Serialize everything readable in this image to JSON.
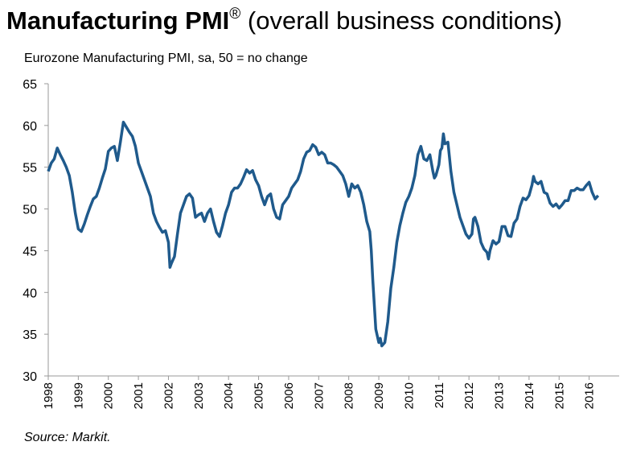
{
  "chart_data": {
    "type": "line",
    "title": "Manufacturing PMI",
    "title_mark": "®",
    "title_suffix": " (overall business conditions)",
    "subtitle": "Eurozone Manufacturing PMI, sa, 50 = no change",
    "source": "Source: Markit.",
    "x": [
      1998.0,
      1998.1,
      1998.2,
      1998.3,
      1998.4,
      1998.5,
      1998.6,
      1998.7,
      1998.8,
      1998.9,
      1999.0,
      1999.1,
      1999.2,
      1999.3,
      1999.4,
      1999.5,
      1999.6,
      1999.7,
      1999.8,
      1999.9,
      2000.0,
      2000.1,
      2000.2,
      2000.3,
      2000.4,
      2000.5,
      2000.6,
      2000.7,
      2000.8,
      2000.9,
      2001.0,
      2001.1,
      2001.2,
      2001.3,
      2001.4,
      2001.5,
      2001.6,
      2001.7,
      2001.8,
      2001.9,
      2002.0,
      2002.05,
      2002.1,
      2002.2,
      2002.3,
      2002.4,
      2002.5,
      2002.6,
      2002.7,
      2002.8,
      2002.9,
      2003.0,
      2003.1,
      2003.2,
      2003.3,
      2003.4,
      2003.5,
      2003.6,
      2003.7,
      2003.8,
      2003.9,
      2004.0,
      2004.1,
      2004.2,
      2004.3,
      2004.4,
      2004.5,
      2004.6,
      2004.7,
      2004.8,
      2004.9,
      2005.0,
      2005.1,
      2005.2,
      2005.3,
      2005.4,
      2005.5,
      2005.6,
      2005.7,
      2005.8,
      2005.9,
      2006.0,
      2006.1,
      2006.2,
      2006.3,
      2006.4,
      2006.5,
      2006.6,
      2006.7,
      2006.8,
      2006.9,
      2007.0,
      2007.1,
      2007.2,
      2007.3,
      2007.4,
      2007.5,
      2007.6,
      2007.7,
      2007.8,
      2007.9,
      2008.0,
      2008.1,
      2008.2,
      2008.3,
      2008.4,
      2008.5,
      2008.6,
      2008.7,
      2008.75,
      2008.8,
      2008.9,
      2009.0,
      2009.05,
      2009.1,
      2009.2,
      2009.3,
      2009.4,
      2009.5,
      2009.6,
      2009.7,
      2009.8,
      2009.9,
      2010.0,
      2010.1,
      2010.2,
      2010.3,
      2010.4,
      2010.5,
      2010.6,
      2010.7,
      2010.8,
      2010.85,
      2010.9,
      2011.0,
      2011.05,
      2011.1,
      2011.15,
      2011.2,
      2011.3,
      2011.4,
      2011.5,
      2011.6,
      2011.7,
      2011.8,
      2011.9,
      2012.0,
      2012.1,
      2012.15,
      2012.2,
      2012.3,
      2012.4,
      2012.5,
      2012.6,
      2012.65,
      2012.7,
      2012.8,
      2012.9,
      2013.0,
      2013.1,
      2013.2,
      2013.3,
      2013.4,
      2013.5,
      2013.6,
      2013.7,
      2013.8,
      2013.9,
      2014.0,
      2014.1,
      2014.15,
      2014.2,
      2014.3,
      2014.4,
      2014.5,
      2014.6,
      2014.7,
      2014.8,
      2014.9,
      2015.0,
      2015.1,
      2015.2,
      2015.3,
      2015.4,
      2015.5,
      2015.6,
      2015.7,
      2015.8,
      2015.9,
      2016.0,
      2016.1,
      2016.2,
      2016.3
    ],
    "series": [
      {
        "name": "Eurozone Manufacturing PMI",
        "color": "#1f5a8c",
        "values": [
          54.5,
          55.5,
          56.0,
          57.3,
          56.5,
          55.8,
          55.0,
          54.0,
          52.0,
          49.5,
          47.6,
          47.3,
          48.2,
          49.3,
          50.3,
          51.2,
          51.5,
          52.5,
          53.7,
          54.8,
          56.9,
          57.3,
          57.5,
          55.8,
          58.0,
          60.4,
          59.8,
          59.2,
          58.7,
          57.5,
          55.5,
          54.5,
          53.5,
          52.5,
          51.5,
          49.5,
          48.5,
          47.8,
          47.2,
          47.4,
          46.0,
          43.0,
          43.5,
          44.3,
          47.0,
          49.5,
          50.5,
          51.5,
          51.8,
          51.3,
          49.0,
          49.3,
          49.5,
          48.5,
          49.5,
          50.0,
          48.5,
          47.2,
          46.7,
          48.0,
          49.5,
          50.5,
          52.0,
          52.5,
          52.5,
          53.0,
          53.8,
          54.7,
          54.3,
          54.6,
          53.5,
          52.8,
          51.5,
          50.5,
          51.5,
          51.8,
          50.0,
          49.0,
          48.8,
          50.5,
          51.0,
          51.5,
          52.5,
          53.0,
          53.5,
          54.5,
          56.0,
          56.8,
          57.0,
          57.7,
          57.4,
          56.5,
          56.8,
          56.5,
          55.5,
          55.5,
          55.3,
          55.0,
          54.5,
          54.0,
          53.0,
          51.5,
          53.0,
          52.5,
          52.8,
          52.0,
          50.5,
          48.5,
          47.3,
          45.0,
          41.5,
          35.6,
          34.0,
          34.5,
          33.6,
          34.0,
          36.5,
          40.5,
          43.0,
          46.0,
          48.0,
          49.5,
          50.8,
          51.5,
          52.5,
          54.0,
          56.5,
          57.5,
          56.0,
          55.8,
          56.5,
          54.5,
          53.7,
          54.0,
          55.3,
          57.0,
          57.3,
          59.0,
          57.8,
          58.0,
          54.5,
          52.0,
          50.5,
          49.0,
          48.0,
          47.0,
          46.5,
          47.0,
          48.8,
          49.0,
          47.9,
          46.0,
          45.2,
          44.8,
          44.0,
          45.0,
          46.2,
          45.8,
          46.1,
          47.9,
          47.9,
          46.8,
          46.7,
          48.3,
          48.8,
          50.3,
          51.3,
          51.1,
          51.6,
          52.9,
          53.9,
          53.3,
          53.0,
          53.3,
          52.0,
          51.8,
          50.7,
          50.3,
          50.6,
          50.1,
          50.5,
          51.0,
          51.0,
          52.2,
          52.2,
          52.5,
          52.3,
          52.3,
          52.8,
          53.2,
          52.0,
          51.2,
          51.6
        ]
      }
    ],
    "xlim": [
      1998,
      2017
    ],
    "xticks": [
      1998,
      1999,
      2000,
      2001,
      2002,
      2003,
      2004,
      2005,
      2006,
      2007,
      2008,
      2009,
      2010,
      2011,
      2012,
      2013,
      2014,
      2015,
      2016
    ],
    "ylim": [
      30,
      65
    ],
    "yticks": [
      30,
      35,
      40,
      45,
      50,
      55,
      60,
      65
    ],
    "grid": false
  }
}
